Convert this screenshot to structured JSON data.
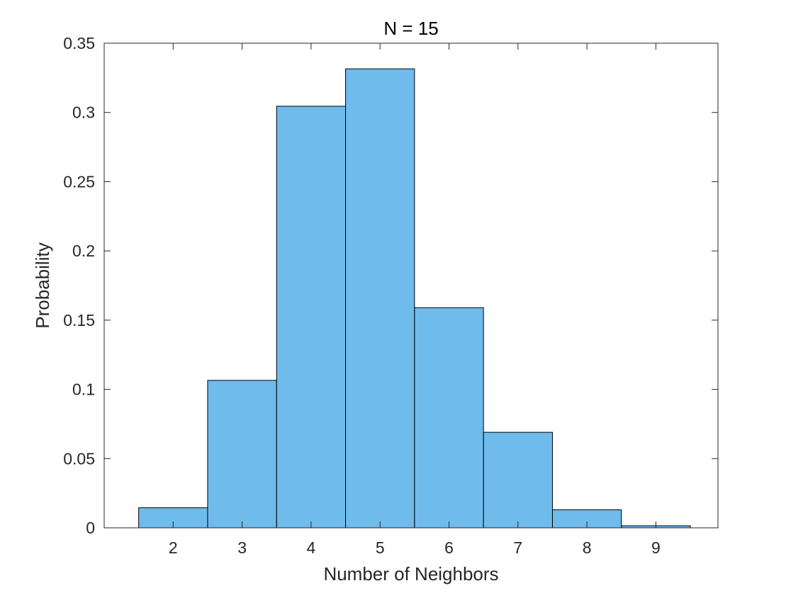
{
  "chart_data": {
    "type": "bar",
    "title": "N = 15",
    "xlabel": "Number of Neighbors",
    "ylabel": "Probability",
    "categories": [
      "2",
      "3",
      "4",
      "5",
      "6",
      "7",
      "8",
      "9"
    ],
    "values": [
      0.0145,
      0.1065,
      0.3045,
      0.3315,
      0.159,
      0.069,
      0.013,
      0.0015
    ],
    "xlim": [
      1,
      9.9
    ],
    "ylim": [
      0,
      0.35
    ],
    "yticks": [
      0,
      0.05,
      0.1,
      0.15,
      0.2,
      0.25,
      0.3,
      0.35
    ],
    "ytick_labels": [
      "0",
      "0.05",
      "0.1",
      "0.15",
      "0.2",
      "0.25",
      "0.3",
      "0.35"
    ],
    "bar_width": 1,
    "bar_color": "#6EBBEC",
    "edge_color": "#000000",
    "grid": false,
    "legend": "none",
    "box": true
  }
}
